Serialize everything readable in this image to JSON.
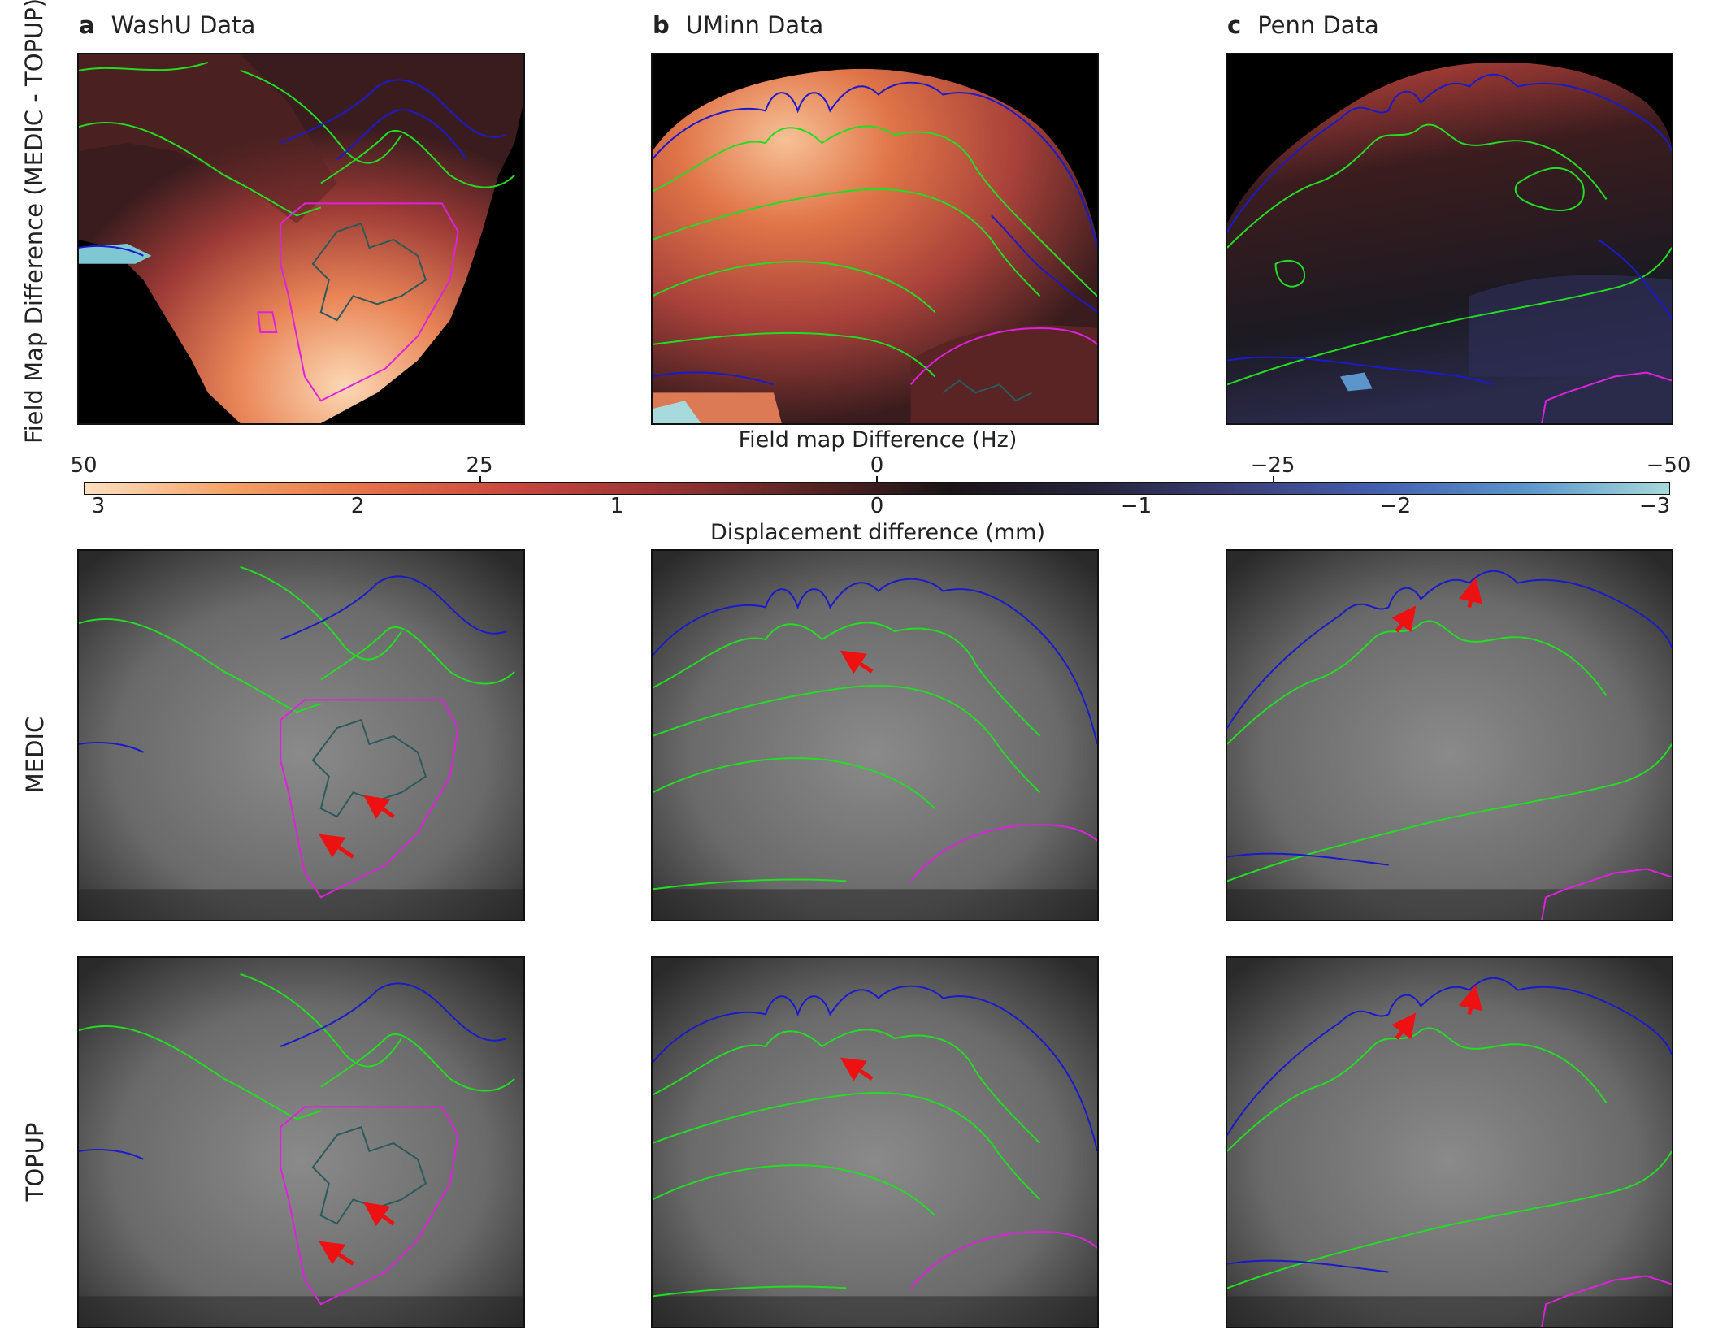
{
  "panels": [
    {
      "letter": "a",
      "title": "WashU Data"
    },
    {
      "letter": "b",
      "title": "UMinn Data"
    },
    {
      "letter": "c",
      "title": "Penn Data"
    }
  ],
  "row_labels": {
    "field_map": "Field Map Difference (MEDIC - TOPUP)",
    "medic": "MEDIC",
    "topup": "TOPUP"
  },
  "colorbar": {
    "top_title": "Field map Difference (Hz)",
    "top_ticks": [
      "50",
      "25",
      "0",
      "−25",
      "−50"
    ],
    "bottom_title": "Displacement difference (mm)",
    "bottom_ticks": [
      "3",
      "2",
      "1",
      "0",
      "−1",
      "−2",
      "−3"
    ],
    "colors": [
      "#fde0c0",
      "#f4a267",
      "#e46f48",
      "#c8463e",
      "#9a3434",
      "#5a2424",
      "#1a1416",
      "#25243a",
      "#3b3f7a",
      "#4460b0",
      "#5b95cc",
      "#a6dadc"
    ]
  },
  "contour_colors": {
    "white_matter": "#22dd22",
    "pial": "#1a1acc",
    "cerebellum": "#dd22dd",
    "inner": "#2a5a5a",
    "arrow": "#ee1111"
  }
}
